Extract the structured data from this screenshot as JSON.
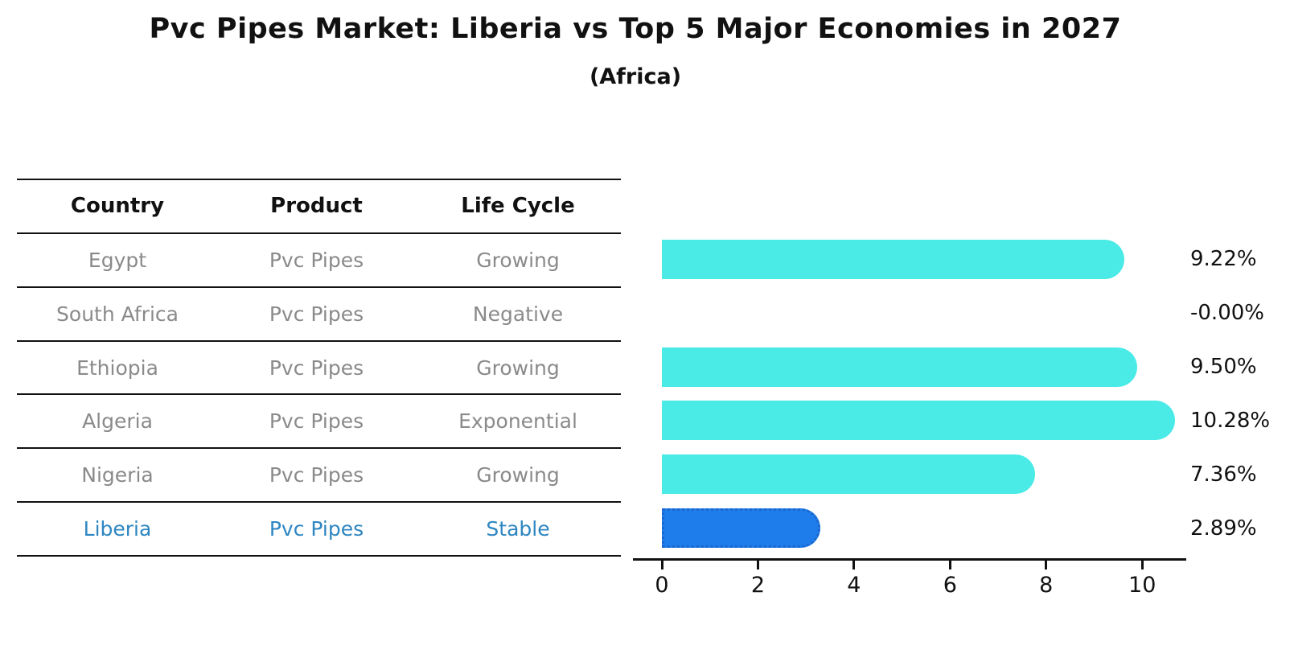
{
  "title": "Pvc Pipes Market: Liberia vs Top 5 Major Economies in 2027",
  "subtitle": "(Africa)",
  "table": {
    "headers": [
      "Country",
      "Product",
      "Life Cycle"
    ],
    "rows": [
      {
        "country": "Egypt",
        "product": "Pvc Pipes",
        "life_cycle": "Growing"
      },
      {
        "country": "South Africa",
        "product": "Pvc Pipes",
        "life_cycle": "Negative"
      },
      {
        "country": "Ethiopia",
        "product": "Pvc Pipes",
        "life_cycle": "Growing"
      },
      {
        "country": "Algeria",
        "product": "Pvc Pipes",
        "life_cycle": "Exponential"
      },
      {
        "country": "Nigeria",
        "product": "Pvc Pipes",
        "life_cycle": "Growing"
      },
      {
        "country": "Liberia",
        "product": "Pvc Pipes",
        "life_cycle": "Stable"
      }
    ]
  },
  "chart_data": {
    "type": "bar",
    "orientation": "horizontal",
    "title": "Pvc Pipes Market: Liberia vs Top 5 Major Economies in 2027",
    "subtitle": "(Africa)",
    "categories": [
      "Egypt",
      "South Africa",
      "Ethiopia",
      "Algeria",
      "Nigeria",
      "Liberia"
    ],
    "values": [
      9.22,
      -0.0,
      9.5,
      10.28,
      7.36,
      2.89
    ],
    "value_labels": [
      "9.22%",
      "-0.00%",
      "9.50%",
      "10.28%",
      "7.36%",
      "2.89%"
    ],
    "x_ticks": [
      0,
      2,
      4,
      6,
      8,
      10
    ],
    "xlim": [
      0,
      10.8
    ],
    "xlabel": "",
    "ylabel": "",
    "grid": false,
    "legend": false,
    "bar_color": "#4AEAE6",
    "highlight_index": 5,
    "highlight_color": "#1E7DEB",
    "highlight_border_color": "#1a66cc",
    "highlight_text_color": "#2E86C1"
  }
}
